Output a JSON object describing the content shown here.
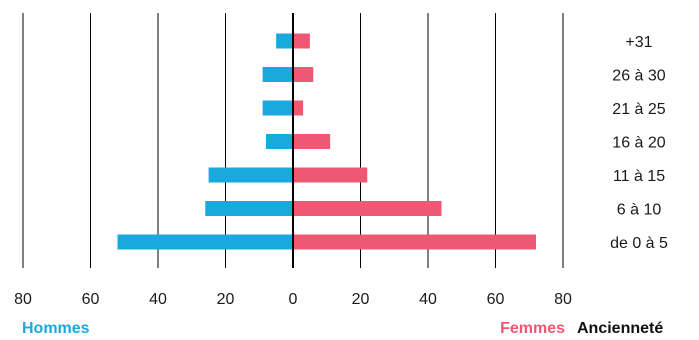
{
  "chart_data": {
    "type": "bar",
    "orientation": "horizontal-population-pyramid",
    "categories": [
      "de 0 à 5",
      "6 à 10",
      "11 à 15",
      "16 à 20",
      "21 à 25",
      "26 à 30",
      "+31"
    ],
    "series": [
      {
        "name": "Hommes",
        "color": "#1aa9de",
        "values": [
          52,
          26,
          25,
          8,
          9,
          9,
          5
        ]
      },
      {
        "name": "Femmes",
        "color": "#ee5873",
        "values": [
          72,
          44,
          22,
          11,
          3,
          6,
          5
        ]
      }
    ],
    "xticks": [
      "80",
      "60",
      "40",
      "20",
      "0",
      "20",
      "40",
      "60",
      "80"
    ],
    "xlim": [
      -80,
      80
    ],
    "grid": true,
    "legend_position": "bottom",
    "ylabel": "Ancienneté",
    "title": ""
  }
}
